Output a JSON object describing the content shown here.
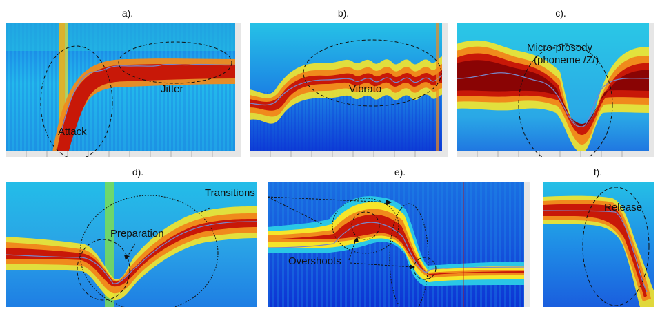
{
  "panels": [
    {
      "id": "a",
      "label": "a).",
      "annotations": [
        "Attack",
        "Jitter"
      ]
    },
    {
      "id": "b",
      "label": "b).",
      "annotations": [
        "Vibrato"
      ]
    },
    {
      "id": "c",
      "label": "c).",
      "annotations": [
        "Micro-prosody",
        "(phoneme /Z/)"
      ]
    },
    {
      "id": "d",
      "label": "d).",
      "annotations": [
        "Preparation"
      ]
    },
    {
      "id": "e",
      "label": "e).",
      "annotations": [
        "Transitions",
        "Overshoots"
      ]
    },
    {
      "id": "f",
      "label": "f).",
      "annotations": [
        "Release"
      ]
    }
  ],
  "colors": {
    "low": "#0a2bd6",
    "mid": "#22c4e8",
    "green": "#8be04a",
    "yellow": "#f6e52a",
    "orange": "#f08a1c",
    "high": "#c81808",
    "peak": "#7a0000",
    "contour": "#7a86c8"
  }
}
